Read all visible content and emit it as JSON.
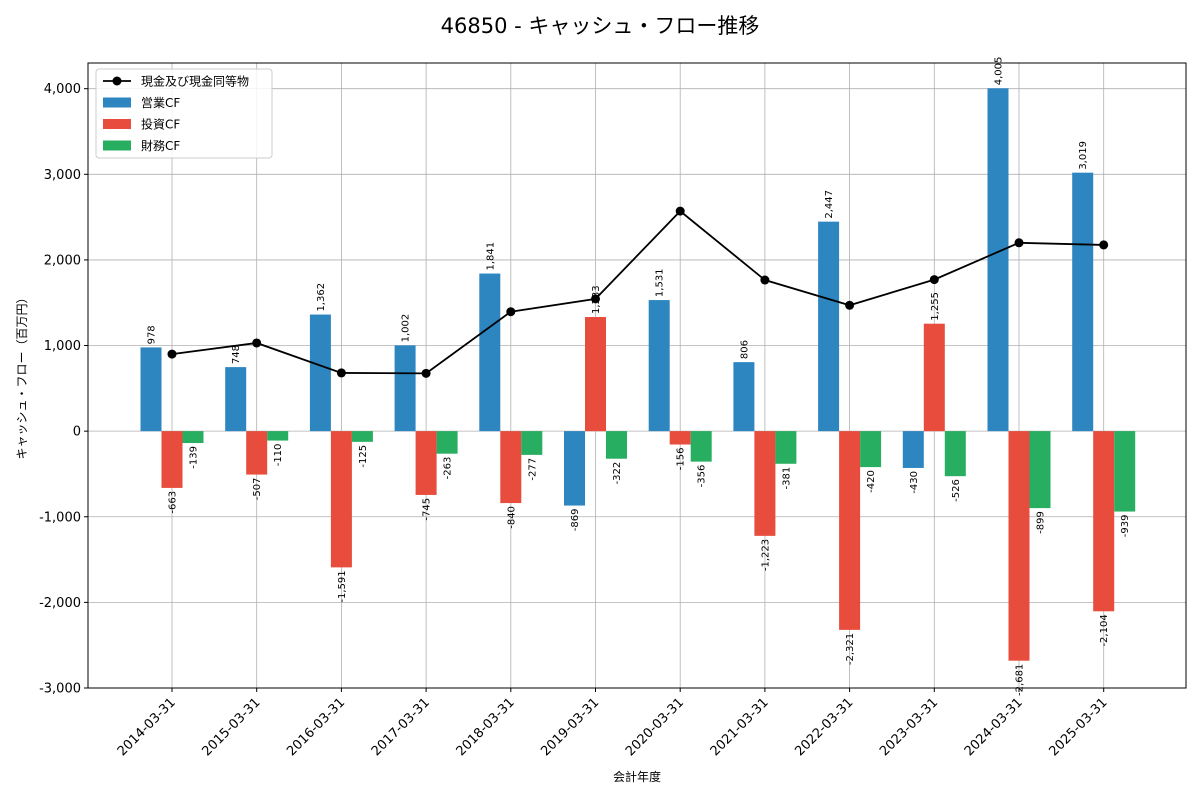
{
  "chart_data": {
    "type": "bar",
    "title": "46850 - キャッシュ・フロー推移",
    "xlabel": "会計年度",
    "ylabel": "キャッシュ・フロー（百万円）",
    "ylim": [
      -3000,
      4300
    ],
    "yticks": [
      -3000,
      -2000,
      -1000,
      0,
      1000,
      2000,
      3000,
      4000
    ],
    "ytick_labels": [
      "-3,000",
      "-2,000",
      "-1,000",
      "0",
      "1,000",
      "2,000",
      "3,000",
      "4,000"
    ],
    "grid": true,
    "legend_position": "top-left",
    "categories": [
      "2014-03-31",
      "2015-03-31",
      "2016-03-31",
      "2017-03-31",
      "2018-03-31",
      "2019-03-31",
      "2020-03-31",
      "2021-03-31",
      "2022-03-31",
      "2023-03-31",
      "2024-03-31",
      "2025-03-31"
    ],
    "series": [
      {
        "name": "営業CF",
        "kind": "bar",
        "color": "#2e86c1",
        "values": [
          978,
          748,
          1362,
          1002,
          1841,
          -869,
          1531,
          806,
          2447,
          -430,
          4005,
          3019
        ],
        "labels": [
          "978",
          "748",
          "1,362",
          "1,002",
          "1,841",
          "-869",
          "1,531",
          "806",
          "2,447",
          "-430",
          "4,005",
          "3,019"
        ]
      },
      {
        "name": "投資CF",
        "kind": "bar",
        "color": "#e74c3c",
        "values": [
          -663,
          -507,
          -1591,
          -745,
          -840,
          1333,
          -156,
          -1223,
          -2321,
          1255,
          -2681,
          -2104
        ],
        "labels": [
          "-663",
          "-507",
          "-1,591",
          "-745",
          "-840",
          "1,333",
          "-156",
          "-1,223",
          "-2,321",
          "1,255",
          "-2,681",
          "-2,104"
        ]
      },
      {
        "name": "財務CF",
        "kind": "bar",
        "color": "#27ae60",
        "values": [
          -139,
          -110,
          -125,
          -263,
          -277,
          -322,
          -356,
          -381,
          -420,
          -526,
          -899,
          -939
        ],
        "labels": [
          "-139",
          "-110",
          "-125",
          "-263",
          "-277",
          "-322",
          "-356",
          "-381",
          "-420",
          "-526",
          "-899",
          "-939"
        ]
      },
      {
        "name": "現金及び現金同等物",
        "kind": "line",
        "color": "#000000",
        "values": [
          900,
          1030,
          680,
          675,
          1395,
          1545,
          2570,
          1765,
          1470,
          1770,
          2200,
          2175
        ]
      }
    ]
  }
}
